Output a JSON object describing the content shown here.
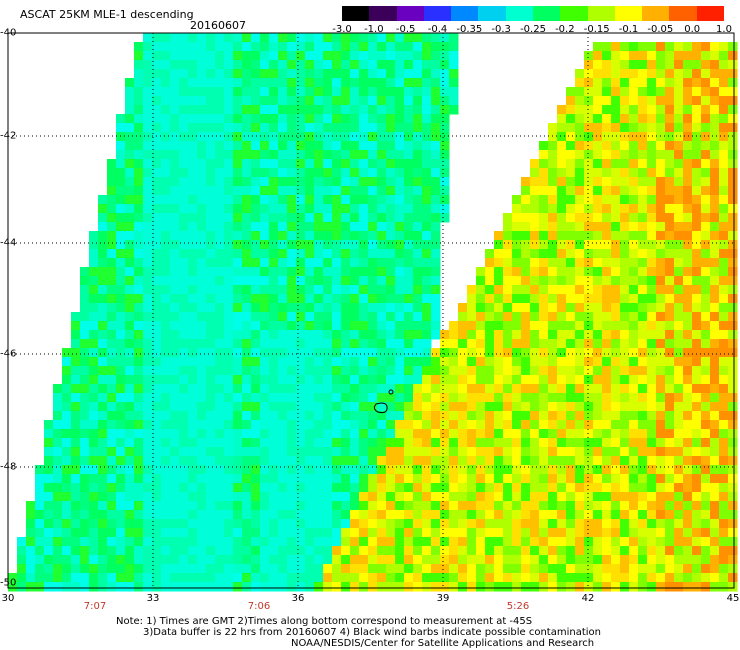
{
  "header": {
    "title": "ASCAT 25KM MLE-1 descending",
    "date": "20160607"
  },
  "colorbar": {
    "ticks": [
      "-3.0",
      "-1.0",
      "-0.5",
      "-0.4",
      "-0.35",
      "-0.3",
      "-0.25",
      "-0.2",
      "-0.15",
      "-0.1",
      "-0.05",
      "0.0",
      "1.0"
    ],
    "colors": [
      "#000000",
      "#3a005a",
      "#6a00c0",
      "#2a30ff",
      "#0088ff",
      "#00d0f0",
      "#00ffd0",
      "#00ff60",
      "#40ff00",
      "#b0ff00",
      "#ffff00",
      "#ffb000",
      "#ff6000",
      "#ff2000"
    ]
  },
  "axes": {
    "lat_labels": [
      "-40",
      "-42",
      "-44",
      "-46",
      "-48",
      "-50"
    ],
    "lon_labels": [
      "30",
      "33",
      "36",
      "39",
      "42",
      "45"
    ],
    "time_labels": [
      "7:07",
      "7:06",
      "5:26"
    ]
  },
  "notes": [
    "Note: 1) Times are GMT 2)Times along bottom correspond to measurement at -45S",
    "3)Data buffer is 22 hrs from 20160607 4) Black wind barbs indicate possible contamination",
    "NOAA/NESDIS/Center for Satellite Applications and Research"
  ]
}
